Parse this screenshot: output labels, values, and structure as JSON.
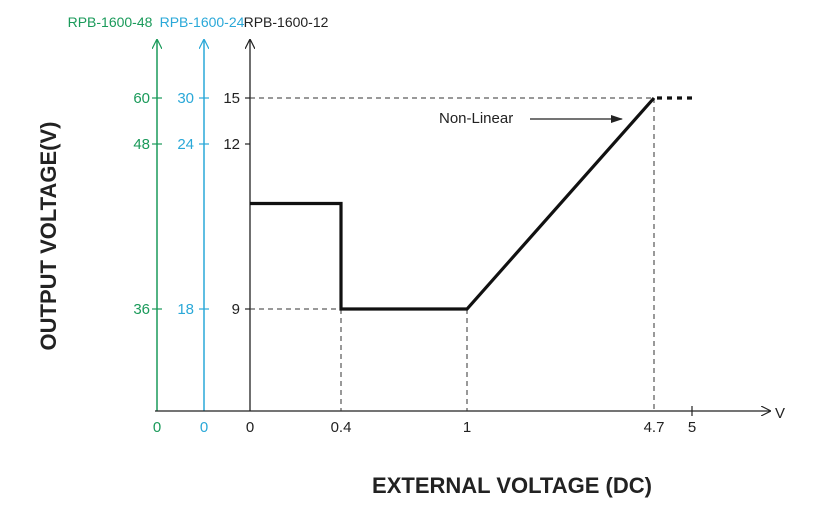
{
  "chart_data": {
    "type": "line",
    "title": "",
    "xlabel": "EXTERNAL VOLTAGE (DC)",
    "ylabel": "OUTPUT VOLTAGE(V)",
    "x_unit": "V",
    "xlim": [
      0,
      5
    ],
    "x_ticks": [
      {
        "value": 0,
        "label": "0"
      },
      {
        "value": 0.4,
        "label": "0.4"
      },
      {
        "value": 1,
        "label": "1"
      },
      {
        "value": 4.7,
        "label": "4.7"
      },
      {
        "value": 5,
        "label": "5"
      }
    ],
    "y_axes": [
      {
        "name": "RPB-1600-48",
        "color": "#1a9a5a",
        "zero_label": "0",
        "ticks": [
          "60",
          "48",
          "36"
        ]
      },
      {
        "name": "RPB-1600-24",
        "color": "#2aa8d8",
        "zero_label": "0",
        "ticks": [
          "30",
          "24",
          "18"
        ]
      },
      {
        "name": "RPB-1600-12",
        "color": "#222222",
        "zero_label": "0",
        "ticks": [
          "15",
          "12",
          "9"
        ]
      }
    ],
    "ylim_primary": [
      6.5,
      15
    ],
    "y_tick_levels": [
      15,
      12,
      9
    ],
    "series": [
      {
        "x": [
          0,
          0.4,
          0.4,
          1,
          4.7
        ],
        "y": [
          12,
          12,
          9,
          9,
          15
        ]
      }
    ],
    "continuation": {
      "x": [
        4.7,
        5
      ],
      "y": [
        15,
        15
      ],
      "style": "dotted"
    },
    "annotations": [
      {
        "text": "Non-Linear",
        "arrow_to": {
          "x": 4.4,
          "y": 14.5
        }
      }
    ],
    "grid": false
  }
}
